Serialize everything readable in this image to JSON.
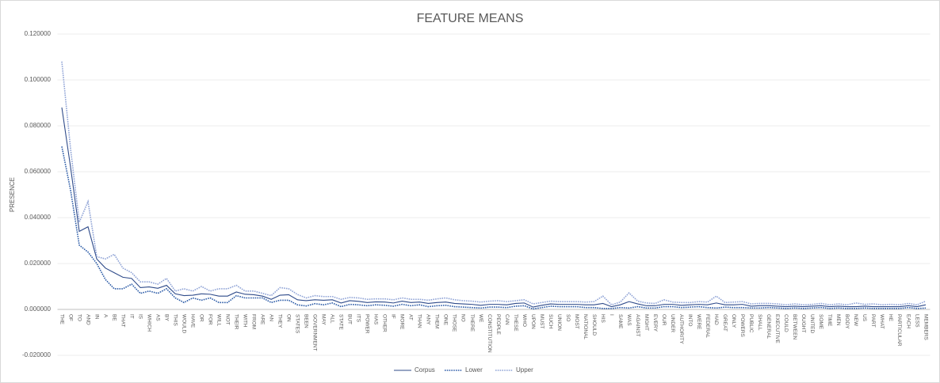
{
  "chart_data": {
    "type": "line",
    "title": "FEATURE MEANS",
    "y_label": "PRESENCE",
    "categories": [
      "THE",
      "OF",
      "TO",
      "AND",
      "IN",
      "A",
      "BE",
      "THAT",
      "IT",
      "IS",
      "WHICH",
      "AS",
      "BY",
      "THIS",
      "WOULD",
      "HAVE",
      "OR",
      "FOR",
      "WILL",
      "NOT",
      "THEIR",
      "WITH",
      "FROM",
      "ARE",
      "AN",
      "THEY",
      "ON",
      "STATES",
      "BEEN",
      "GOVERNMENT",
      "MAY",
      "ALL",
      "STATE",
      "BUT",
      "ITS",
      "POWER",
      "HAS",
      "OTHER",
      "IF",
      "MORE",
      "AT",
      "THAN",
      "ANY",
      "THEM",
      "ONE",
      "THOSE",
      "NO",
      "THERE",
      "WE",
      "CONSTITUTION",
      "PEOPLE",
      "CAN",
      "THESE",
      "WHO",
      "UPON",
      "MUST",
      "SUCH",
      "UNION",
      "SO",
      "MOST",
      "NATIONAL",
      "SHOULD",
      "HIS",
      "I",
      "SAME",
      "WAS",
      "AGAINST",
      "MIGHT",
      "EVERY",
      "OUR",
      "UNDER",
      "AUTHORITY",
      "INTO",
      "WERE",
      "FEDERAL",
      "HAD",
      "GREAT",
      "ONLY",
      "POWERS",
      "PUBLIC",
      "SHALL",
      "GENERAL",
      "EXECUTIVE",
      "COULD",
      "BETWEEN",
      "OUGHT",
      "UNITED",
      "SOME",
      "TIME",
      "MEN",
      "BODY",
      "NEW",
      "US",
      "PART",
      "WHAT",
      "HE",
      "PARTICULAR",
      "EACH",
      "LESS",
      "MEMBERS"
    ],
    "series": [
      {
        "name": "Corpus",
        "color": "#2f4b8a",
        "dash": "solid",
        "values": [
          0.088,
          0.062,
          0.034,
          0.036,
          0.022,
          0.018,
          0.016,
          0.014,
          0.0135,
          0.0095,
          0.0098,
          0.0092,
          0.0105,
          0.0068,
          0.006,
          0.0062,
          0.0068,
          0.0066,
          0.0058,
          0.0058,
          0.0076,
          0.0066,
          0.0064,
          0.0058,
          0.0044,
          0.0062,
          0.0064,
          0.0042,
          0.0038,
          0.0042,
          0.004,
          0.0042,
          0.0028,
          0.0038,
          0.0035,
          0.003,
          0.0033,
          0.0032,
          0.0028,
          0.0036,
          0.003,
          0.0032,
          0.0026,
          0.003,
          0.0032,
          0.0026,
          0.0024,
          0.0022,
          0.0018,
          0.0022,
          0.0022,
          0.002,
          0.0026,
          0.0028,
          0.001,
          0.0018,
          0.0024,
          0.0022,
          0.0022,
          0.0022,
          0.002,
          0.002,
          0.0026,
          0.0012,
          0.002,
          0.0034,
          0.0024,
          0.0016,
          0.0016,
          0.0022,
          0.0022,
          0.0018,
          0.002,
          0.0022,
          0.002,
          0.0028,
          0.002,
          0.002,
          0.0022,
          0.0014,
          0.0016,
          0.0016,
          0.0014,
          0.0012,
          0.0014,
          0.0012,
          0.0014,
          0.0016,
          0.0012,
          0.0014,
          0.0012,
          0.0012,
          0.0014,
          0.0012,
          0.0012,
          0.0012,
          0.0012,
          0.0016,
          0.0012,
          0.002
        ]
      },
      {
        "name": "Lower",
        "color": "#2e5da8",
        "dash": "dotted",
        "values": [
          0.071,
          0.052,
          0.028,
          0.025,
          0.02,
          0.013,
          0.009,
          0.009,
          0.011,
          0.007,
          0.008,
          0.007,
          0.009,
          0.005,
          0.003,
          0.005,
          0.004,
          0.005,
          0.003,
          0.003,
          0.006,
          0.005,
          0.005,
          0.005,
          0.003,
          0.004,
          0.004,
          0.002,
          0.0015,
          0.0025,
          0.002,
          0.0028,
          0.0012,
          0.0022,
          0.002,
          0.0016,
          0.002,
          0.0018,
          0.0014,
          0.0022,
          0.0016,
          0.002,
          0.0012,
          0.0016,
          0.0018,
          0.0012,
          0.001,
          0.0008,
          0.0006,
          0.001,
          0.001,
          0.0008,
          0.0014,
          0.0016,
          0.0002,
          0.0008,
          0.0014,
          0.0012,
          0.0012,
          0.0012,
          0.0008,
          0.0008,
          0.0004,
          0.0004,
          0.0008,
          0.0006,
          0.0012,
          0.0006,
          0.0006,
          0.0012,
          0.0012,
          0.0008,
          0.001,
          0.0012,
          0.0008,
          0.0006,
          0.001,
          0.0008,
          0.0008,
          0.0006,
          0.0006,
          0.0008,
          0.0006,
          0.0004,
          0.0006,
          0.0004,
          0.0006,
          0.0008,
          0.0004,
          0.0006,
          0.0004,
          0.0004,
          0.0006,
          0.0004,
          0.0004,
          0.0004,
          0.0004,
          0.0008,
          0.0004,
          0.0006
        ]
      },
      {
        "name": "Upper",
        "color": "#8fa3d6",
        "dash": "dotted",
        "values": [
          0.108,
          0.07,
          0.038,
          0.047,
          0.023,
          0.022,
          0.024,
          0.018,
          0.016,
          0.012,
          0.012,
          0.011,
          0.0135,
          0.008,
          0.009,
          0.008,
          0.01,
          0.008,
          0.009,
          0.009,
          0.0105,
          0.008,
          0.008,
          0.007,
          0.006,
          0.0095,
          0.009,
          0.0065,
          0.005,
          0.006,
          0.0056,
          0.0056,
          0.0044,
          0.0052,
          0.005,
          0.0044,
          0.0046,
          0.0046,
          0.0042,
          0.005,
          0.0044,
          0.0044,
          0.004,
          0.0046,
          0.005,
          0.0042,
          0.0038,
          0.0036,
          0.0032,
          0.0036,
          0.0038,
          0.0034,
          0.0038,
          0.0042,
          0.0024,
          0.003,
          0.0036,
          0.0034,
          0.0034,
          0.0034,
          0.0032,
          0.0034,
          0.0058,
          0.002,
          0.0032,
          0.0072,
          0.0036,
          0.0028,
          0.0026,
          0.0042,
          0.0032,
          0.003,
          0.003,
          0.0034,
          0.0032,
          0.0058,
          0.003,
          0.0032,
          0.0034,
          0.0024,
          0.0026,
          0.0026,
          0.0024,
          0.002,
          0.0024,
          0.002,
          0.0022,
          0.0026,
          0.002,
          0.0024,
          0.002,
          0.0028,
          0.0022,
          0.0024,
          0.002,
          0.0022,
          0.002,
          0.0026,
          0.002,
          0.0036
        ]
      }
    ],
    "ylim": [
      -0.02,
      0.12
    ],
    "yticks": [
      {
        "value": -0.02,
        "label": "-0.020000"
      },
      {
        "value": 0,
        "label": "0.000000"
      },
      {
        "value": 0.02,
        "label": "0.020000"
      },
      {
        "value": 0.04,
        "label": "0.040000"
      },
      {
        "value": 0.06,
        "label": "0.060000"
      },
      {
        "value": 0.08,
        "label": "0.080000"
      },
      {
        "value": 0.1,
        "label": "0.100000"
      },
      {
        "value": 0.12,
        "label": "0.120000"
      }
    ],
    "grid": true,
    "legend": "bottom"
  }
}
